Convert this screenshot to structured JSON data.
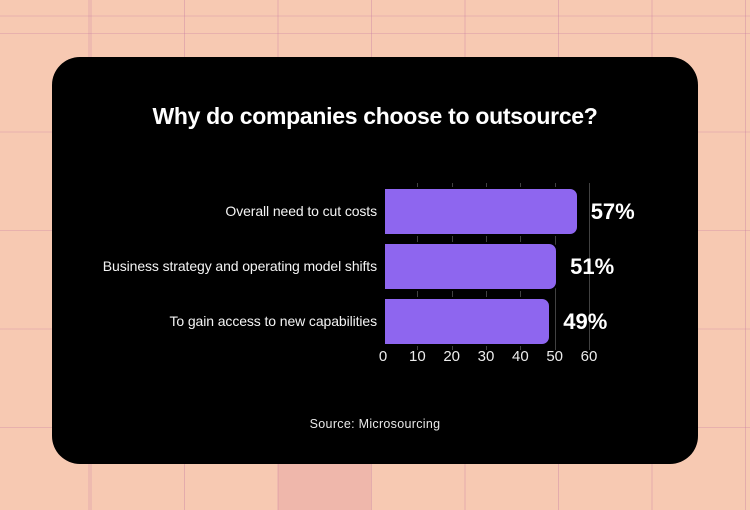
{
  "page": {
    "background_color": "#f7c9b2",
    "card_color": "#000000"
  },
  "chart_data": {
    "type": "bar",
    "orientation": "horizontal",
    "title": "Why do companies choose to outsource?",
    "categories": [
      "Overall need to cut costs",
      "Business strategy and operating model shifts",
      "To gain access to new capabilities"
    ],
    "values": [
      57,
      51,
      49
    ],
    "value_labels": [
      "57%",
      "51%",
      "49%"
    ],
    "x_ticks": [
      0,
      10,
      20,
      30,
      40,
      50,
      60
    ],
    "xlim": [
      0,
      60
    ],
    "grid": "vertical gridlines at each x tick, dark gray, behind bars",
    "legend": "none",
    "bar_color": "#8e66ef",
    "text_color": "#ffffff",
    "source": "Source: Microsourcing"
  }
}
